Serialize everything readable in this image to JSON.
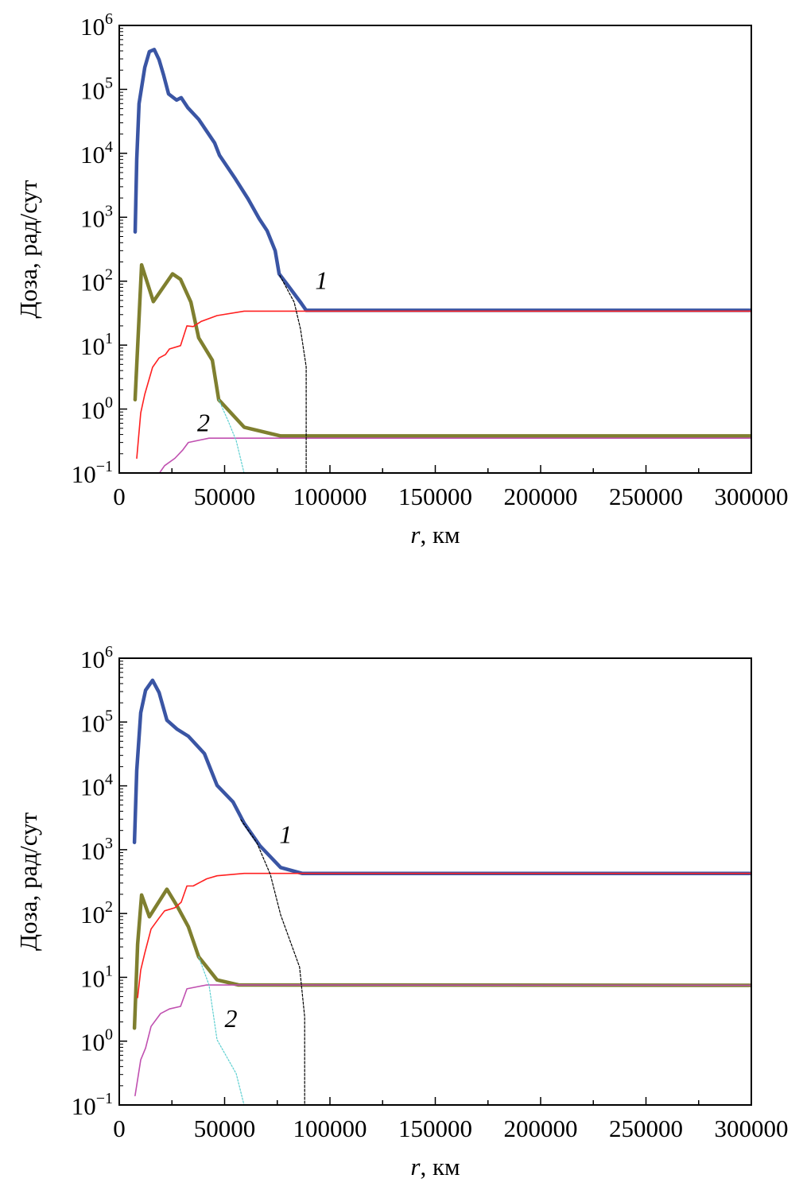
{
  "chart_data": [
    {
      "type": "line",
      "panel": "top",
      "xlabel_var": "r",
      "xlabel_unit": ", км",
      "ylabel": "Доза, рад/сут",
      "xlim": [
        0,
        300000
      ],
      "ylim": [
        0.1,
        1000000
      ],
      "yscale": "log",
      "x_ticks": [
        "0",
        "50000",
        "100000",
        "150000",
        "200000",
        "250000",
        "300000"
      ],
      "y_ticks": [
        {
          "base": "10",
          "exp": "6"
        },
        {
          "base": "10",
          "exp": "5"
        },
        {
          "base": "10",
          "exp": "4"
        },
        {
          "base": "10",
          "exp": "3"
        },
        {
          "base": "10",
          "exp": "2"
        },
        {
          "base": "10",
          "exp": "1"
        },
        {
          "base": "10",
          "exp": "0"
        },
        {
          "base": "10",
          "exp": "−1"
        }
      ],
      "annotations": [
        {
          "text": "1",
          "x": 96000,
          "y": 100
        },
        {
          "text": "2",
          "x": 40000,
          "y": 0.6
        }
      ],
      "series": [
        {
          "name": "curve-1-total",
          "color": "#3a55a4",
          "width": 4.5,
          "dash": "",
          "x": [
            7550,
            8300,
            9400,
            12100,
            14300,
            16600,
            18900,
            21100,
            23400,
            27200,
            29400,
            32500,
            37700,
            45300,
            47600,
            55100,
            61100,
            66400,
            70200,
            74000,
            75900,
            80400,
            86000,
            88700,
            300000
          ],
          "y": [
            590,
            8100,
            60000,
            220000,
            390000,
            420000,
            290000,
            165000,
            85000,
            68000,
            74000,
            52000,
            34000,
            14500,
            9300,
            4000,
            1950,
            950,
            615,
            300,
            130,
            83,
            47,
            35,
            35
          ]
        },
        {
          "name": "curve-2-total",
          "color": "#7f7f2f",
          "width": 4.5,
          "dash": "",
          "x": [
            7500,
            10600,
            16200,
            25300,
            29100,
            34000,
            37700,
            44200,
            47200,
            59300,
            76600,
            300000
          ],
          "y": [
            1.4,
            180,
            48,
            130,
            107,
            47,
            13,
            5.8,
            1.4,
            0.52,
            0.38,
            0.38
          ]
        },
        {
          "name": "curve-1-component",
          "color": "#ff2020",
          "width": 1.6,
          "dash": "",
          "x": [
            8300,
            10200,
            12100,
            15800,
            18900,
            21900,
            23800,
            29100,
            32100,
            35100,
            38900,
            46400,
            59300,
            86800,
            300000
          ],
          "y": [
            0.17,
            0.87,
            1.7,
            4.5,
            6.3,
            7.1,
            8.7,
            9.8,
            20,
            19.5,
            23.5,
            29,
            34,
            34,
            34
          ]
        },
        {
          "name": "curve-2-component",
          "color": "#c050b0",
          "width": 1.6,
          "dash": "",
          "x": [
            18100,
            21500,
            26400,
            30200,
            32800,
            42600,
            300000
          ],
          "y": [
            0.09,
            0.13,
            0.17,
            0.23,
            0.3,
            0.35,
            0.35
          ]
        },
        {
          "name": "curve-2-trapped",
          "color": "#5ccfd0",
          "width": 1.2,
          "dash": "2,2",
          "x": [
            47200,
            51700,
            55500,
            59600
          ],
          "y": [
            1.4,
            0.65,
            0.32,
            0.09
          ]
        },
        {
          "name": "curve-1-trapped",
          "color": "#000000",
          "width": 1.2,
          "dash": "3,2",
          "x": [
            76200,
            83000,
            86000,
            88700,
            88700
          ],
          "y": [
            123,
            47,
            18,
            4.6,
            0.09
          ]
        }
      ]
    },
    {
      "type": "line",
      "panel": "bottom",
      "xlabel_var": "r",
      "xlabel_unit": ", км",
      "ylabel": "Доза, рад/сут",
      "xlim": [
        0,
        300000
      ],
      "ylim": [
        0.1,
        1000000
      ],
      "yscale": "log",
      "x_ticks": [
        "0",
        "50000",
        "100000",
        "150000",
        "200000",
        "250000",
        "300000"
      ],
      "y_ticks": [
        {
          "base": "10",
          "exp": "6"
        },
        {
          "base": "10",
          "exp": "5"
        },
        {
          "base": "10",
          "exp": "4"
        },
        {
          "base": "10",
          "exp": "3"
        },
        {
          "base": "10",
          "exp": "2"
        },
        {
          "base": "10",
          "exp": "1"
        },
        {
          "base": "10",
          "exp": "0"
        },
        {
          "base": "10",
          "exp": "−1"
        }
      ],
      "annotations": [
        {
          "text": "1",
          "x": 79000,
          "y": 1700
        },
        {
          "text": "2",
          "x": 53000,
          "y": 2.2
        }
      ],
      "series": [
        {
          "name": "curve-1-total",
          "color": "#3a55a4",
          "width": 4.5,
          "dash": "",
          "x": [
            7200,
            8300,
            10200,
            12500,
            15800,
            18900,
            22600,
            27500,
            32800,
            40400,
            46400,
            54000,
            59300,
            66800,
            76600,
            86800,
            300000
          ],
          "y": [
            1300,
            17500,
            140000,
            315000,
            450000,
            290000,
            107000,
            77000,
            60000,
            32000,
            10200,
            5600,
            2600,
            1150,
            525,
            425,
            425
          ]
        },
        {
          "name": "curve-2-total",
          "color": "#7f7f2f",
          "width": 4.5,
          "dash": "",
          "x": [
            7200,
            8700,
            10600,
            14300,
            22600,
            27500,
            32800,
            37700,
            46400,
            56600,
            300000
          ],
          "y": [
            1.6,
            33,
            195,
            89,
            240,
            130,
            62,
            21,
            9.1,
            7.6,
            7.5
          ]
        },
        {
          "name": "curve-1-component",
          "color": "#ff2020",
          "width": 1.6,
          "dash": "",
          "x": [
            8700,
            10200,
            12100,
            15100,
            18900,
            21500,
            26400,
            29400,
            32100,
            35100,
            41500,
            46400,
            59300,
            300000
          ],
          "y": [
            4.8,
            13,
            24,
            57,
            85,
            110,
            123,
            150,
            270,
            270,
            350,
            390,
            425,
            425
          ]
        },
        {
          "name": "curve-2-component",
          "color": "#c050b0",
          "width": 1.6,
          "dash": "",
          "x": [
            7500,
            10200,
            12500,
            15100,
            19600,
            23800,
            29100,
            32100,
            41500,
            300000
          ],
          "y": [
            0.14,
            0.51,
            0.78,
            1.7,
            2.7,
            3.2,
            3.5,
            6.6,
            7.6,
            7.5
          ]
        },
        {
          "name": "curve-2-trapped",
          "color": "#5ccfd0",
          "width": 1.2,
          "dash": "2,2",
          "x": [
            37700,
            42600,
            46400,
            55500,
            59600
          ],
          "y": [
            21,
            7.6,
            1.05,
            0.31,
            0.09
          ]
        },
        {
          "name": "curve-1-trapped",
          "color": "#000000",
          "width": 1.2,
          "dash": "3,2",
          "x": [
            57700,
            65300,
            71700,
            76600,
            85600,
            88000,
            88000
          ],
          "y": [
            2950,
            1290,
            410,
            95,
            14.5,
            2.4,
            0.09
          ]
        }
      ]
    }
  ]
}
